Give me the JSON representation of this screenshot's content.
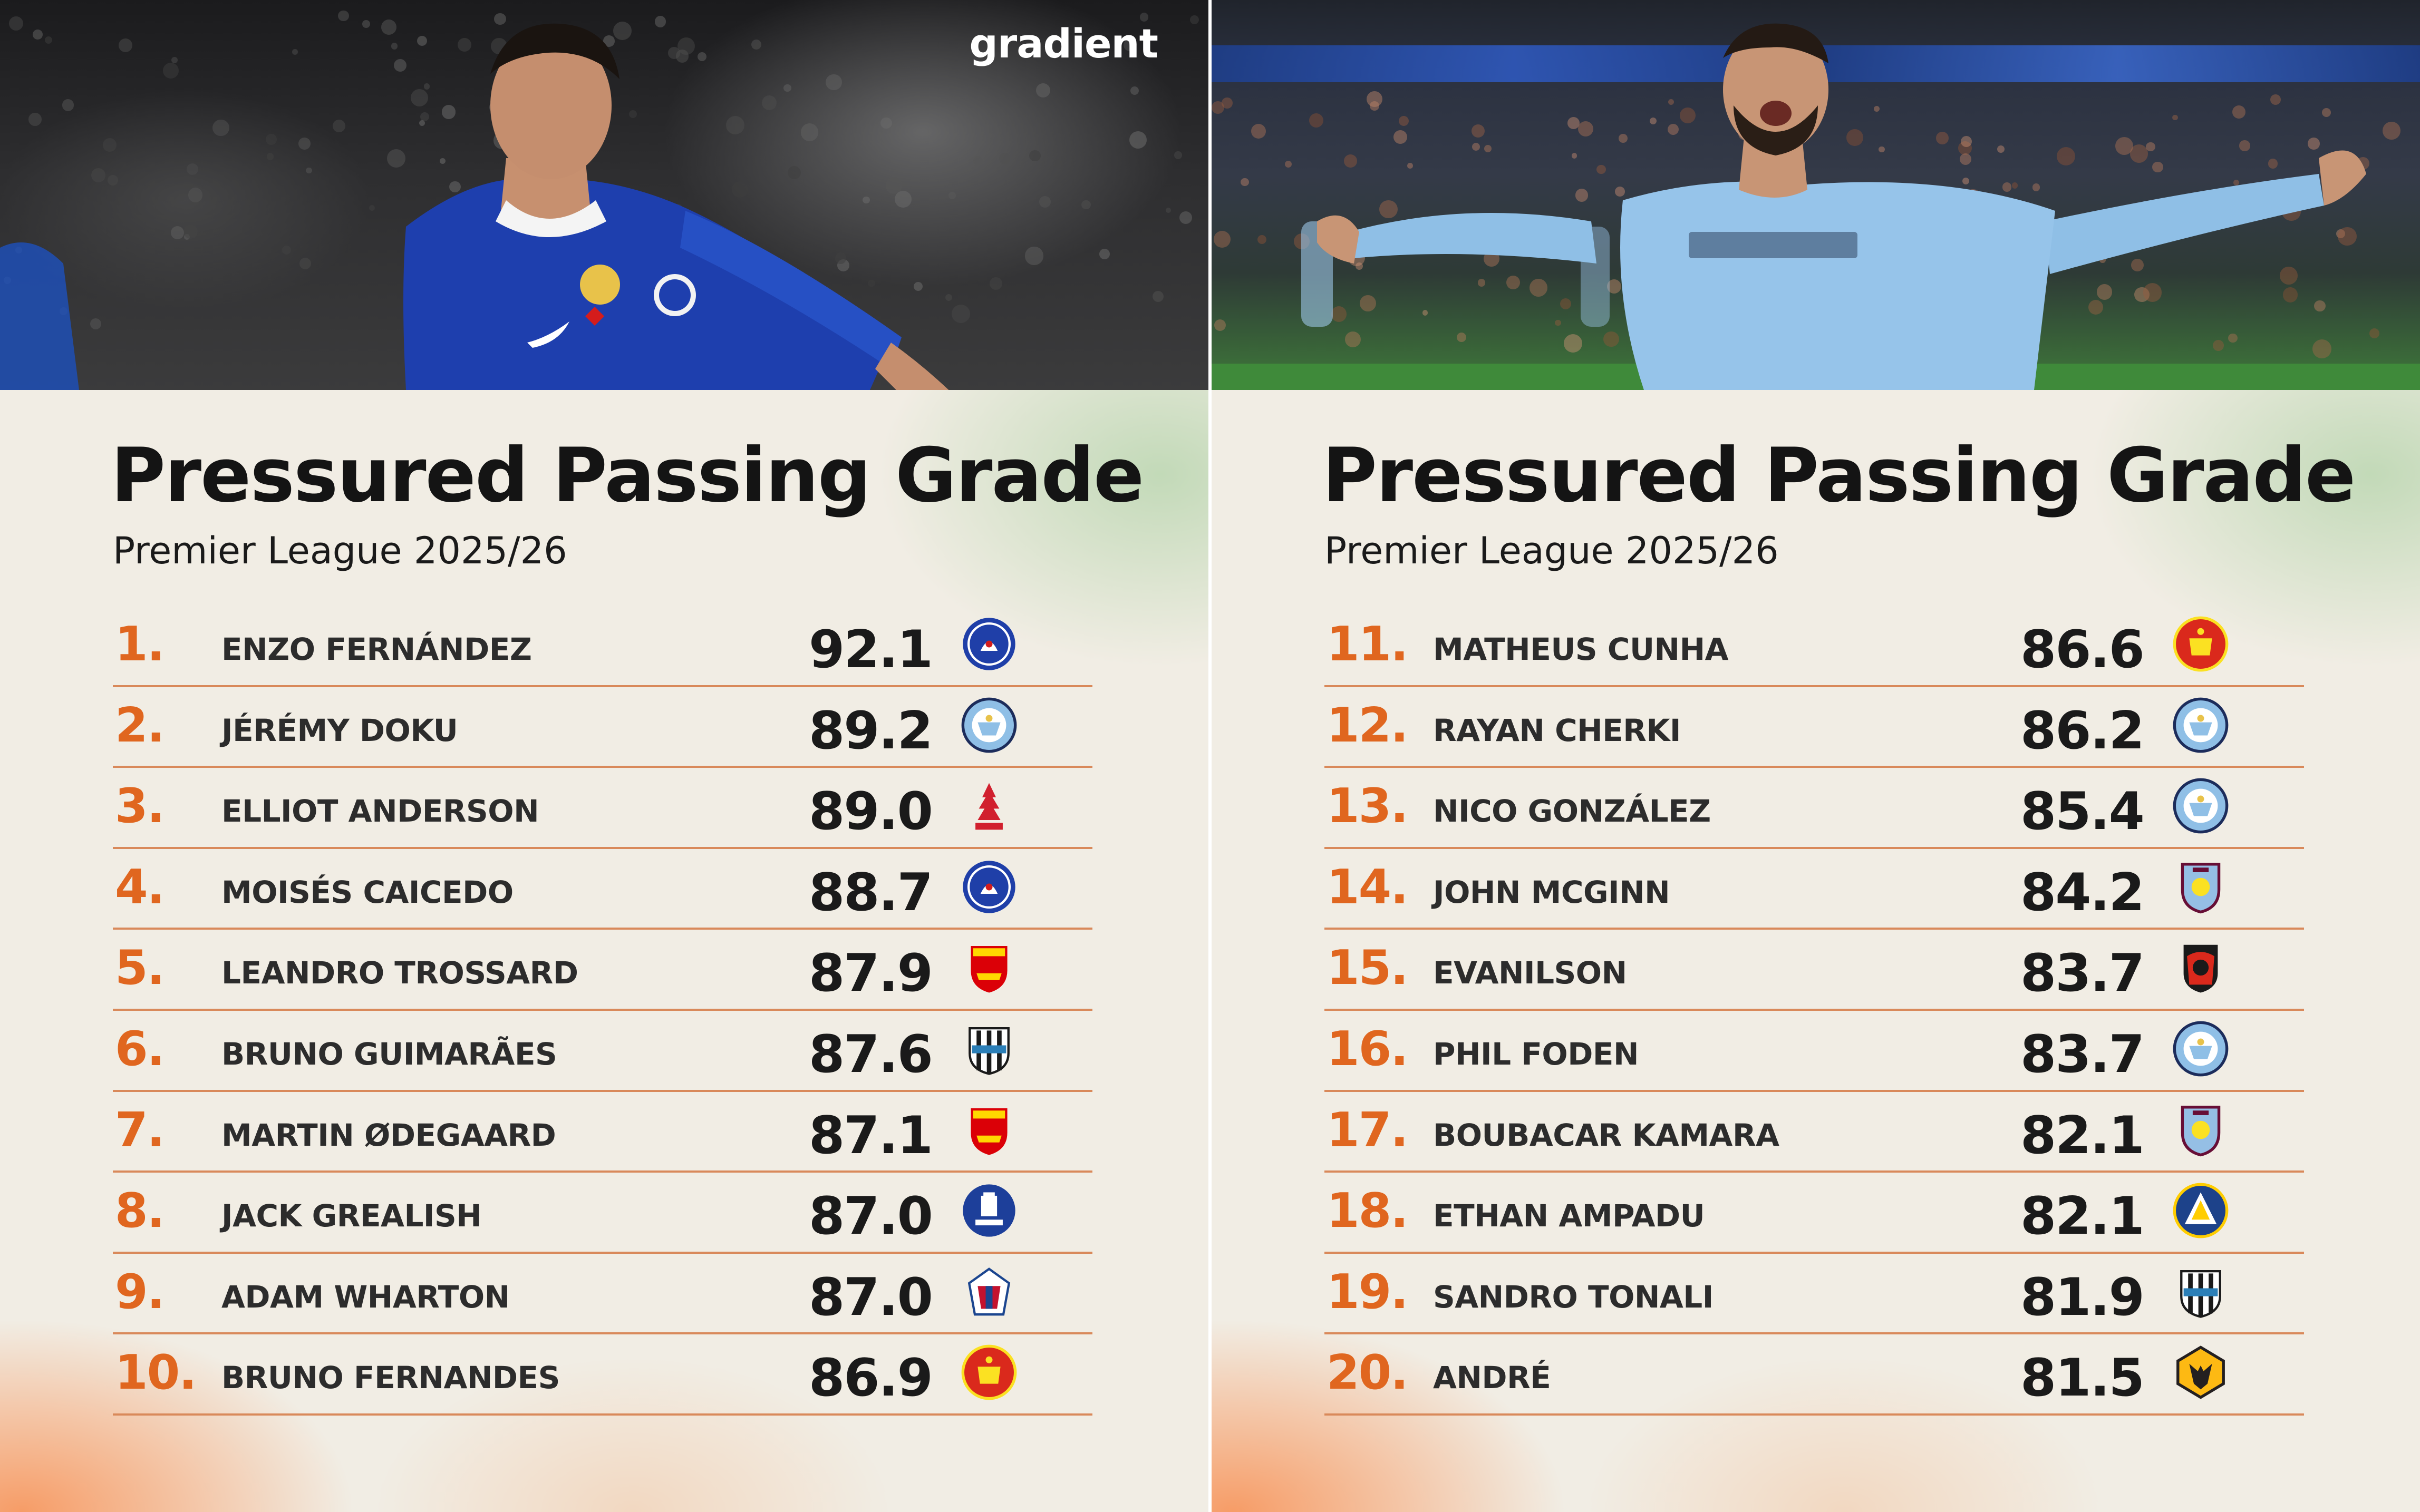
{
  "brand": "gradient",
  "colors": {
    "rank_accent": "#e0661f",
    "divider": "#d9895a",
    "background": "#f1ede4",
    "chelsea_blue": "#1f3fa8",
    "city_sky_blue": "#8fbfe6"
  },
  "panels": [
    {
      "title": "Pressured Passing Grade",
      "subtitle": "Premier League 2025/26",
      "rows": [
        {
          "rank": "1.",
          "name": "ENZO FERNÁNDEZ",
          "score": "92.1",
          "club_icon": "chelsea-crest-icon",
          "club": "chelsea"
        },
        {
          "rank": "2.",
          "name": "JÉRÉMY DOKU",
          "score": "89.2",
          "club_icon": "manchester-city-crest-icon",
          "club": "mancity"
        },
        {
          "rank": "3.",
          "name": "ELLIOT ANDERSON",
          "score": "89.0",
          "club_icon": "nottingham-forest-crest-icon",
          "club": "forest"
        },
        {
          "rank": "4.",
          "name": "MOISÉS CAICEDO",
          "score": "88.7",
          "club_icon": "chelsea-crest-icon",
          "club": "chelsea"
        },
        {
          "rank": "5.",
          "name": "LEANDRO TROSSARD",
          "score": "87.9",
          "club_icon": "arsenal-crest-icon",
          "club": "arsenal"
        },
        {
          "rank": "6.",
          "name": "BRUNO GUIMARÃES",
          "score": "87.6",
          "club_icon": "newcastle-crest-icon",
          "club": "newcastle"
        },
        {
          "rank": "7.",
          "name": "MARTIN ØDEGAARD",
          "score": "87.1",
          "club_icon": "arsenal-crest-icon",
          "club": "arsenal"
        },
        {
          "rank": "8.",
          "name": "JACK GREALISH",
          "score": "87.0",
          "club_icon": "everton-crest-icon",
          "club": "everton"
        },
        {
          "rank": "9.",
          "name": "ADAM WHARTON",
          "score": "87.0",
          "club_icon": "crystal-palace-crest-icon",
          "club": "palace"
        },
        {
          "rank": "10.",
          "name": "BRUNO FERNANDES",
          "score": "86.9",
          "club_icon": "manchester-united-crest-icon",
          "club": "manutd"
        }
      ]
    },
    {
      "title": "Pressured Passing Grade",
      "subtitle": "Premier League 2025/26",
      "rows": [
        {
          "rank": "11.",
          "name": "MATHEUS CUNHA",
          "score": "86.6",
          "club_icon": "manchester-united-crest-icon",
          "club": "manutd"
        },
        {
          "rank": "12.",
          "name": "RAYAN CHERKI",
          "score": "86.2",
          "club_icon": "manchester-city-crest-icon",
          "club": "mancity"
        },
        {
          "rank": "13.",
          "name": "NICO GONZÁLEZ",
          "score": "85.4",
          "club_icon": "manchester-city-crest-icon",
          "club": "mancity"
        },
        {
          "rank": "14.",
          "name": "JOHN MCGINN",
          "score": "84.2",
          "club_icon": "aston-villa-crest-icon",
          "club": "villa"
        },
        {
          "rank": "15.",
          "name": "EVANILSON",
          "score": "83.7",
          "club_icon": "bournemouth-crest-icon",
          "club": "bournemouth"
        },
        {
          "rank": "16.",
          "name": "PHIL FODEN",
          "score": "83.7",
          "club_icon": "manchester-city-crest-icon",
          "club": "mancity"
        },
        {
          "rank": "17.",
          "name": "BOUBACAR KAMARA",
          "score": "82.1",
          "club_icon": "aston-villa-crest-icon",
          "club": "villa"
        },
        {
          "rank": "18.",
          "name": "ETHAN AMPADU",
          "score": "82.1",
          "club_icon": "leeds-crest-icon",
          "club": "leeds"
        },
        {
          "rank": "19.",
          "name": "SANDRO TONALI",
          "score": "81.9",
          "club_icon": "newcastle-crest-icon",
          "club": "newcastle"
        },
        {
          "rank": "20.",
          "name": "ANDRÉ",
          "score": "81.5",
          "club_icon": "wolves-crest-icon",
          "club": "wolves"
        }
      ]
    }
  ]
}
